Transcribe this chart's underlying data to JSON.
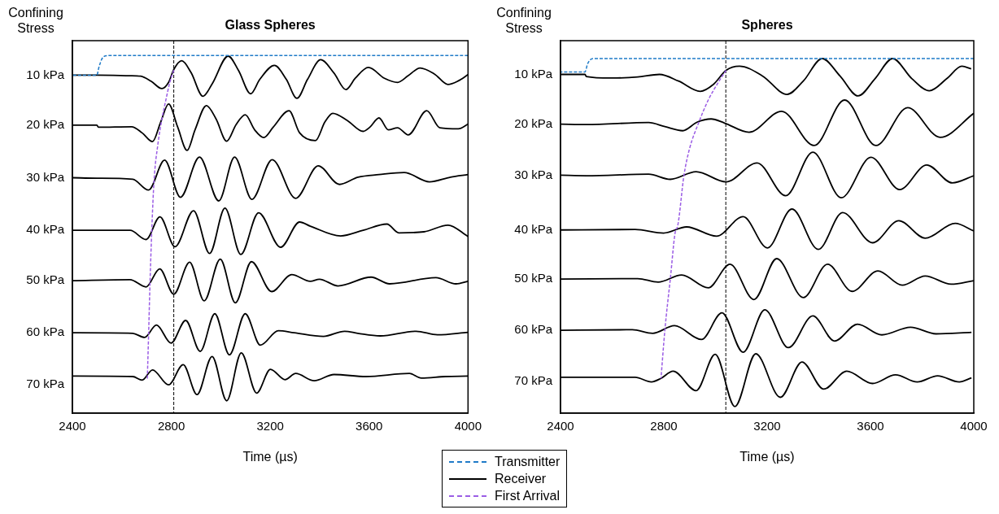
{
  "chart_data": [
    {
      "type": "line",
      "title": "Glass Spheres",
      "xlabel": "Time (µs)",
      "ylabel": "Confining Stress",
      "grid": false,
      "xlim": [
        2400,
        4000
      ],
      "xticks": [
        2400,
        2800,
        3200,
        3600,
        4000
      ],
      "ylim": [
        75.6,
        3.3
      ],
      "yticks": [
        {
          "value": 10,
          "label": "10 kPa"
        },
        {
          "value": 19.7,
          "label": "20 kPa"
        },
        {
          "value": 29.9,
          "label": "30 kPa"
        },
        {
          "value": 40.1,
          "label": "40 kPa"
        },
        {
          "value": 49.9,
          "label": "50 kPa"
        },
        {
          "value": 60,
          "label": "60 kPa"
        },
        {
          "value": 70,
          "label": "70 kPa"
        }
      ],
      "ref_lines": [
        {
          "axis": "x",
          "value": 2810,
          "color": "#000000",
          "line_style": "dashed"
        }
      ],
      "series": [
        {
          "color": "#1f7bc8",
          "line_style": "dashed",
          "x": [
            2400,
            2499,
            2507,
            2521,
            2542,
            4000
          ],
          "values": [
            10,
            10,
            8.5,
            6.7,
            6.2,
            6.2
          ]
        },
        {
          "color": "#000000",
          "line_style": "solid",
          "x": [
            2400,
            2499,
            2633,
            2676,
            2719,
            2762,
            2789,
            2810,
            2842,
            2880,
            2928,
            2965,
            3030,
            3072,
            3121,
            3158,
            3217,
            3265,
            3308,
            3351,
            3404,
            3458,
            3506,
            3544,
            3597,
            3662,
            3715,
            3758,
            3806,
            3865,
            3919,
            3961,
            4000
          ],
          "values": [
            10,
            10,
            10.1,
            10.2,
            11.2,
            12.6,
            11.4,
            8.9,
            7.2,
            9.5,
            14.1,
            11.7,
            6.3,
            9.1,
            13.6,
            10.8,
            8.1,
            10.8,
            14.5,
            10.8,
            7.0,
            9.6,
            12.8,
            10.6,
            8.5,
            10.6,
            11.4,
            10.1,
            8.6,
            9.8,
            11.8,
            11.1,
            9.9
          ]
        },
        {
          "color": "#000000",
          "line_style": "solid",
          "x": [
            2400,
            2499,
            2505,
            2639,
            2682,
            2724,
            2757,
            2789,
            2826,
            2864,
            2896,
            2942,
            2981,
            3024,
            3062,
            3099,
            3137,
            3174,
            3212,
            3276,
            3319,
            3383,
            3421,
            3453,
            3512,
            3576,
            3603,
            3640,
            3678,
            3715,
            3758,
            3833,
            3886,
            3961,
            4000
          ],
          "values": [
            19.7,
            19.7,
            20.1,
            20,
            21.2,
            22.9,
            19.1,
            15.6,
            20.1,
            24.6,
            20.6,
            15.9,
            18.5,
            22.8,
            19.6,
            17.7,
            20.6,
            22.1,
            20.1,
            16.9,
            21.2,
            22.7,
            19.1,
            17.4,
            18.8,
            20.9,
            20.1,
            18.3,
            20.6,
            20.2,
            21.6,
            16.9,
            20.2,
            20.4,
            19.5
          ]
        },
        {
          "color": "#000000",
          "line_style": "solid",
          "x": [
            2400,
            2499,
            2644,
            2708,
            2773,
            2837,
            2914,
            2992,
            3056,
            3126,
            3208,
            3303,
            3394,
            3480,
            3555,
            3640,
            3742,
            3844,
            3929,
            4000
          ],
          "values": [
            29.9,
            30,
            30.2,
            32.3,
            26.5,
            33.7,
            25.9,
            34.4,
            25.9,
            34.1,
            26.4,
            33.9,
            27.6,
            31.2,
            29.8,
            29.3,
            28.9,
            30.7,
            29.8,
            29.3
          ]
        },
        {
          "color": "#000000",
          "line_style": "solid",
          "x": [
            2400,
            2633,
            2698,
            2754,
            2815,
            2890,
            2955,
            3017,
            3081,
            3153,
            3242,
            3319,
            3362,
            3485,
            3576,
            3672,
            3720,
            3822,
            3919,
            4000
          ],
          "values": [
            40.1,
            40.1,
            41.9,
            37.5,
            43.3,
            36.3,
            44.6,
            35.8,
            44.8,
            36.7,
            43.4,
            38.5,
            39.3,
            41.2,
            40.1,
            38.9,
            40.6,
            40.4,
            39.1,
            41.3
          ]
        },
        {
          "color": "#000000",
          "line_style": "solid",
          "x": [
            2400,
            2633,
            2698,
            2753,
            2810,
            2874,
            2933,
            2998,
            3059,
            3124,
            3206,
            3287,
            3362,
            3399,
            3474,
            3608,
            3683,
            3870,
            3951,
            4000
          ],
          "values": [
            49.9,
            49.7,
            51.1,
            47.6,
            52.5,
            46.3,
            53.8,
            45.7,
            54.2,
            46.2,
            52,
            48.7,
            50,
            49.6,
            50.9,
            49.2,
            50.5,
            49.3,
            50.5,
            50
          ]
        },
        {
          "color": "#000000",
          "line_style": "solid",
          "x": [
            2400,
            2644,
            2692,
            2740,
            2799,
            2858,
            2917,
            2976,
            3035,
            3099,
            3160,
            3233,
            3297,
            3415,
            3501,
            3554,
            3645,
            3790,
            3876,
            4000
          ],
          "values": [
            60,
            60.1,
            60.9,
            58.5,
            62,
            57.6,
            63.6,
            56.3,
            64.3,
            56.3,
            62.4,
            59.6,
            60,
            60.7,
            59.7,
            60.1,
            60.6,
            59.7,
            60.4,
            59.9
          ]
        },
        {
          "color": "#000000",
          "line_style": "solid",
          "x": [
            2400,
            2644,
            2682,
            2724,
            2789,
            2848,
            2904,
            2965,
            3024,
            3083,
            3145,
            3201,
            3260,
            3303,
            3378,
            3458,
            3587,
            3763,
            3811,
            3908,
            4000
          ],
          "values": [
            68.4,
            68.5,
            69.2,
            67.2,
            70.1,
            66.2,
            72,
            64.6,
            73.2,
            63.9,
            71.7,
            67.1,
            69.1,
            67.9,
            69.3,
            68.1,
            68.5,
            67.9,
            68.8,
            68.5,
            68.4
          ]
        },
        {
          "color": "#9b5de5",
          "line_style": "dashed",
          "x": [
            2703,
            2708,
            2714,
            2721,
            2730,
            2746,
            2762,
            2778,
            2794,
            2810
          ],
          "values": [
            68.9,
            60.6,
            50.1,
            40.1,
            30.6,
            23.3,
            18.5,
            14.8,
            11.4,
            9
          ]
        }
      ]
    },
    {
      "type": "line",
      "title": "Spheres",
      "xlabel": "Time (µs)",
      "ylabel": "Confining Stress",
      "grid": false,
      "legend": "bottom left",
      "xlim": [
        2400,
        4000
      ],
      "xticks": [
        2400,
        2800,
        3200,
        3600,
        4000
      ],
      "ylim": [
        76.2,
        3.4
      ],
      "yticks": [
        {
          "value": 10,
          "label": "10 kPa"
        },
        {
          "value": 19.7,
          "label": "20 kPa"
        },
        {
          "value": 29.7,
          "label": "30 kPa"
        },
        {
          "value": 40.4,
          "label": "40 kPa"
        },
        {
          "value": 50,
          "label": "50 kPa"
        },
        {
          "value": 60,
          "label": "60 kPa"
        },
        {
          "value": 70,
          "label": "70 kPa"
        }
      ],
      "ref_lines": [
        {
          "axis": "x",
          "value": 3040,
          "color": "#000000",
          "line_style": "dashed"
        }
      ],
      "series": [
        {
          "name": "Transmitter",
          "color": "#1f7bc8",
          "line_style": "dashed",
          "x": [
            2400,
            2495,
            2505,
            2526,
            4000
          ],
          "values": [
            9.5,
            9.5,
            7.9,
            6.9,
            6.9
          ]
        },
        {
          "name": "Receiver",
          "color": "#000000",
          "line_style": "solid",
          "x": [
            2400,
            2495,
            2500,
            2594,
            2699,
            2783,
            2857,
            2941,
            2993,
            3041,
            3093,
            3182,
            3277,
            3340,
            3413,
            3482,
            3552,
            3618,
            3686,
            3760,
            3828,
            3896,
            3954,
            3990
          ],
          "values": [
            10,
            10,
            10.4,
            10.7,
            10.5,
            10,
            11.3,
            13.3,
            11.9,
            9.2,
            8.4,
            10.3,
            13.9,
            11.3,
            6.9,
            10.3,
            14.2,
            10.8,
            6.9,
            10.8,
            13.2,
            10.8,
            8.4,
            8.9
          ]
        },
        {
          "color": "#000000",
          "line_style": "solid",
          "x": [
            2400,
            2500,
            2741,
            2804,
            2873,
            2930,
            2983,
            3035,
            3130,
            3256,
            3382,
            3500,
            3621,
            3744,
            3870,
            4000
          ],
          "values": [
            19.7,
            19.8,
            19.4,
            20.2,
            21,
            19.3,
            18.7,
            19.5,
            21.3,
            17.2,
            23.9,
            15,
            23.9,
            16.5,
            22.3,
            17.6
          ]
        },
        {
          "color": "#000000",
          "line_style": "solid",
          "x": [
            2400,
            2500,
            2741,
            2825,
            2925,
            3041,
            3161,
            3272,
            3377,
            3487,
            3602,
            3713,
            3818,
            3917,
            4000
          ],
          "values": [
            29.7,
            29.8,
            29.5,
            30.5,
            29,
            31,
            27.3,
            33.7,
            25.2,
            34.1,
            26.2,
            32.5,
            27.7,
            31.2,
            29.8
          ]
        },
        {
          "color": "#000000",
          "line_style": "solid",
          "x": [
            2400,
            2689,
            2799,
            2888,
            3004,
            3107,
            3201,
            3296,
            3398,
            3492,
            3608,
            3710,
            3812,
            3928,
            4000
          ],
          "values": [
            40.4,
            40.3,
            41,
            39.8,
            41.6,
            37.8,
            43.9,
            36.3,
            44.2,
            37,
            42.9,
            38.6,
            42,
            39.1,
            40.6
          ]
        },
        {
          "color": "#000000",
          "line_style": "solid",
          "x": [
            2400,
            2699,
            2778,
            2869,
            2972,
            3056,
            3149,
            3237,
            3340,
            3434,
            3529,
            3629,
            3723,
            3812,
            3912,
            4000
          ],
          "values": [
            50,
            49.9,
            50.6,
            49.2,
            51.7,
            47.1,
            54,
            46,
            53.6,
            47.1,
            52.4,
            48.4,
            51.2,
            49.4,
            51,
            50.3
          ]
        },
        {
          "color": "#000000",
          "line_style": "solid",
          "x": [
            2400,
            2678,
            2757,
            2841,
            2946,
            3025,
            3107,
            3191,
            3282,
            3377,
            3461,
            3550,
            3644,
            3755,
            3854,
            3991
          ],
          "values": [
            60,
            59.9,
            60.6,
            59.1,
            61.8,
            56.6,
            64.3,
            56,
            63.4,
            57.2,
            62.1,
            58.8,
            60.9,
            59.4,
            60.7,
            60.4
          ]
        },
        {
          "color": "#000000",
          "line_style": "solid",
          "x": [
            2400,
            2689,
            2752,
            2789,
            2836,
            2925,
            2999,
            3075,
            3156,
            3251,
            3335,
            3419,
            3508,
            3608,
            3697,
            3781,
            3860,
            3944,
            3991
          ],
          "values": [
            69.2,
            69.2,
            70.1,
            69.4,
            68,
            71.8,
            64.7,
            74.9,
            64.6,
            73.1,
            66.2,
            71.5,
            68,
            70.4,
            68.7,
            70.1,
            68.9,
            70.1,
            69.3
          ]
        },
        {
          "name": "First Arrival",
          "color": "#9b5de5",
          "line_style": "dashed",
          "x": [
            2789,
            2804,
            2825,
            2846,
            2852,
            2878,
            2899,
            2936,
            2972,
            3014,
            3041
          ],
          "values": [
            69.4,
            60,
            50,
            40.4,
            39.9,
            29.7,
            24.6,
            19.3,
            15,
            11.3,
            9.2
          ]
        }
      ]
    }
  ]
}
